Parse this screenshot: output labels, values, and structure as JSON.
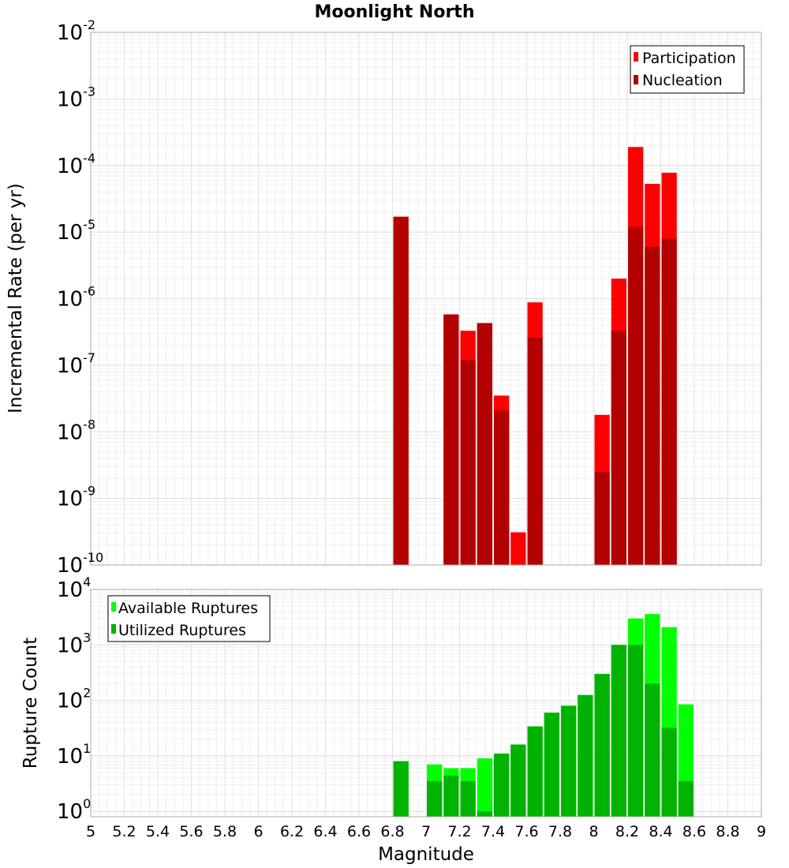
{
  "figure": {
    "title": "Moonlight North",
    "xlabel": "Magnitude"
  },
  "chart_data": [
    {
      "type": "bar",
      "title": "Moonlight North",
      "xlabel": "Magnitude",
      "ylabel": "Incremental Rate (per yr)",
      "yscale": "log",
      "xlim": [
        5,
        9
      ],
      "ylim": [
        1e-10,
        0.01
      ],
      "x_ticks": [
        "5",
        "5.2",
        "5.4",
        "5.6",
        "5.8",
        "6",
        "6.2",
        "6.4",
        "6.6",
        "6.8",
        "7",
        "7.2",
        "7.4",
        "7.6",
        "7.8",
        "8",
        "8.2",
        "8.4",
        "8.6",
        "8.8",
        "9"
      ],
      "y_ticks": [
        {
          "base": "10",
          "exp": "-10"
        },
        {
          "base": "10",
          "exp": "-9"
        },
        {
          "base": "10",
          "exp": "-8"
        },
        {
          "base": "10",
          "exp": "-7"
        },
        {
          "base": "10",
          "exp": "-6"
        },
        {
          "base": "10",
          "exp": "-5"
        },
        {
          "base": "10",
          "exp": "-4"
        },
        {
          "base": "10",
          "exp": "-3"
        },
        {
          "base": "10",
          "exp": "-2"
        }
      ],
      "grid": true,
      "legend_position": "top-right",
      "bar_width": 0.1,
      "series": [
        {
          "name": "Participation",
          "color": "#ff0000",
          "x": [
            6.85,
            7.15,
            7.25,
            7.35,
            7.45,
            7.55,
            7.65,
            8.05,
            8.15,
            8.25,
            8.35,
            8.45
          ],
          "values": [
            1.7e-05,
            5.8e-07,
            3.3e-07,
            4.3e-07,
            3.5e-08,
            3.1e-10,
            8.8e-07,
            1.8e-08,
            2e-06,
            0.00019,
            5.3e-05,
            7.8e-05
          ]
        },
        {
          "name": "Nucleation",
          "color": "#b30000",
          "x": [
            6.85,
            7.15,
            7.25,
            7.35,
            7.45,
            7.65,
            8.05,
            8.15,
            8.25,
            8.35,
            8.45
          ],
          "values": [
            1.7e-05,
            5.8e-07,
            1.2e-07,
            4.3e-07,
            2.1e-08,
            2.6e-07,
            2.5e-09,
            3.3e-07,
            1.2e-05,
            6e-06,
            8e-06
          ]
        }
      ]
    },
    {
      "type": "bar",
      "xlabel": "Magnitude",
      "ylabel": "Rupture Count",
      "yscale": "log",
      "xlim": [
        5,
        9
      ],
      "ylim": [
        0.8,
        10000
      ],
      "x_ticks": [
        "5",
        "5.2",
        "5.4",
        "5.6",
        "5.8",
        "6",
        "6.2",
        "6.4",
        "6.6",
        "6.8",
        "7",
        "7.2",
        "7.4",
        "7.6",
        "7.8",
        "8",
        "8.2",
        "8.4",
        "8.6",
        "8.8",
        "9"
      ],
      "y_ticks": [
        {
          "base": "10",
          "exp": "0"
        },
        {
          "base": "10",
          "exp": "1"
        },
        {
          "base": "10",
          "exp": "2"
        },
        {
          "base": "10",
          "exp": "3"
        },
        {
          "base": "10",
          "exp": "4"
        }
      ],
      "grid": true,
      "legend_position": "top-left",
      "bar_width": 0.1,
      "series": [
        {
          "name": "Available Ruptures",
          "color": "#00ff00",
          "x": [
            6.85,
            7.05,
            7.15,
            7.25,
            7.35,
            7.45,
            7.55,
            7.65,
            7.75,
            7.85,
            7.95,
            8.05,
            8.15,
            8.25,
            8.35,
            8.45,
            8.55
          ],
          "values": [
            8,
            7,
            6,
            6,
            9,
            11,
            16,
            34,
            60,
            80,
            125,
            300,
            1000,
            3000,
            3600,
            2100,
            85
          ]
        },
        {
          "name": "Utilized Ruptures",
          "color": "#00b300",
          "x": [
            6.85,
            7.05,
            7.15,
            7.25,
            7.35,
            7.45,
            7.55,
            7.65,
            7.75,
            7.85,
            7.95,
            8.05,
            8.15,
            8.25,
            8.35,
            8.45,
            8.55
          ],
          "values": [
            8,
            3.5,
            4.4,
            3.5,
            1,
            11,
            16,
            34,
            60,
            80,
            125,
            300,
            1000,
            1000,
            200,
            32,
            3.5
          ]
        }
      ]
    }
  ]
}
